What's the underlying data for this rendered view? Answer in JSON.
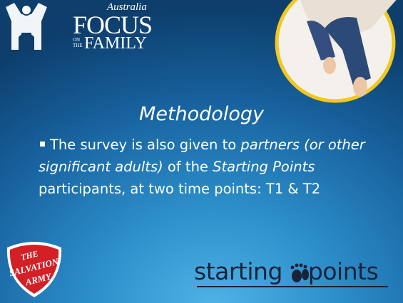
{
  "header": {
    "logo": {
      "country": "Australia",
      "name_top": "FOCUS",
      "small_top": "ON",
      "small_bottom": "THE",
      "name_bottom": "FAMILY"
    }
  },
  "slide": {
    "title": "Methodology",
    "bullet": [
      "The survey is also given to ",
      "partners (or other significant adults)",
      " of the ",
      "Starting Points",
      " participants, at two time points: T1 & T2"
    ]
  },
  "footer": {
    "salvation_army": [
      "THE",
      "SALVATION",
      "ARMY"
    ],
    "starting_points": [
      "starting",
      "points"
    ]
  }
}
